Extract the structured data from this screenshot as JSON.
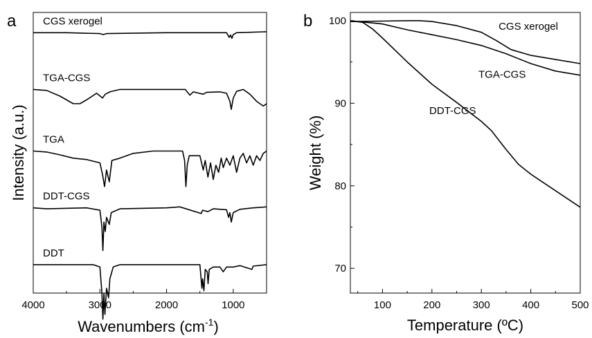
{
  "chart_data": [
    {
      "type": "line",
      "panel_label": "a",
      "xlabel": "Wavenumbers (cm",
      "xlabel_sup": "-1",
      "xlabel_end": ")",
      "ylabel": "Intensity (a.u.)",
      "xlim": [
        4000,
        500
      ],
      "x_reversed": true,
      "y_ticks_shown": false,
      "xticks": [
        4000,
        3000,
        2000,
        1000
      ],
      "xtick_labels": [
        "4000",
        "3000",
        "2000",
        "1000"
      ],
      "grid": false,
      "legend": "none",
      "series": [
        {
          "name": "CGS xerogel",
          "offset": 5.5,
          "points": [
            [
              4000,
              0
            ],
            [
              3500,
              0
            ],
            [
              3000,
              -0.02
            ],
            [
              2950,
              -0.04
            ],
            [
              2900,
              -0.02
            ],
            [
              2000,
              0
            ],
            [
              1700,
              0
            ],
            [
              1100,
              0
            ],
            [
              1060,
              -0.1
            ],
            [
              1040,
              -0.05
            ],
            [
              1020,
              -0.12
            ],
            [
              1000,
              -0.04
            ],
            [
              950,
              0
            ],
            [
              500,
              0.02
            ]
          ]
        },
        {
          "name": "TGA-CGS",
          "offset": 4.3,
          "points": [
            [
              4000,
              0
            ],
            [
              3800,
              -0.02
            ],
            [
              3600,
              -0.14
            ],
            [
              3400,
              -0.3
            ],
            [
              3300,
              -0.3
            ],
            [
              3200,
              -0.22
            ],
            [
              3050,
              -0.08
            ],
            [
              2960,
              -0.18
            ],
            [
              2920,
              -0.1
            ],
            [
              2850,
              -0.05
            ],
            [
              2700,
              0
            ],
            [
              2000,
              0
            ],
            [
              1720,
              0
            ],
            [
              1650,
              -0.12
            ],
            [
              1600,
              -0.05
            ],
            [
              1450,
              -0.1
            ],
            [
              1400,
              -0.06
            ],
            [
              1200,
              -0.05
            ],
            [
              1100,
              -0.08
            ],
            [
              1050,
              -0.25
            ],
            [
              1030,
              -0.42
            ],
            [
              1000,
              -0.18
            ],
            [
              950,
              -0.04
            ],
            [
              850,
              0
            ],
            [
              750,
              -0.1
            ],
            [
              650,
              -0.25
            ],
            [
              550,
              -0.35
            ],
            [
              500,
              -0.3
            ]
          ]
        },
        {
          "name": "TGA",
          "offset": 3.0,
          "points": [
            [
              4000,
              0
            ],
            [
              3800,
              -0.02
            ],
            [
              3600,
              -0.08
            ],
            [
              3400,
              -0.15
            ],
            [
              3200,
              -0.18
            ],
            [
              3000,
              -0.25
            ],
            [
              2960,
              -0.5
            ],
            [
              2930,
              -0.75
            ],
            [
              2900,
              -0.4
            ],
            [
              2860,
              -0.65
            ],
            [
              2820,
              -0.2
            ],
            [
              2700,
              -0.15
            ],
            [
              2500,
              -0.05
            ],
            [
              2200,
              0
            ],
            [
              1760,
              0
            ],
            [
              1730,
              -0.2
            ],
            [
              1710,
              -0.75
            ],
            [
              1690,
              -0.3
            ],
            [
              1660,
              -0.1
            ],
            [
              1500,
              -0.1
            ],
            [
              1450,
              -0.4
            ],
            [
              1420,
              -0.2
            ],
            [
              1380,
              -0.55
            ],
            [
              1340,
              -0.25
            ],
            [
              1300,
              -0.6
            ],
            [
              1260,
              -0.3
            ],
            [
              1220,
              -0.45
            ],
            [
              1180,
              -0.15
            ],
            [
              1150,
              -0.35
            ],
            [
              1100,
              -0.15
            ],
            [
              1050,
              -0.3
            ],
            [
              1000,
              -0.1
            ],
            [
              950,
              -0.45
            ],
            [
              900,
              -0.15
            ],
            [
              850,
              -0.05
            ],
            [
              800,
              -0.25
            ],
            [
              750,
              -0.1
            ],
            [
              700,
              -0.3
            ],
            [
              650,
              -0.1
            ],
            [
              600,
              -0.2
            ],
            [
              550,
              -0.05
            ],
            [
              500,
              0
            ]
          ]
        },
        {
          "name": "DDT-CGS",
          "offset": 1.8,
          "points": [
            [
              4000,
              0
            ],
            [
              3800,
              -0.02
            ],
            [
              3200,
              0
            ],
            [
              3000,
              -0.05
            ],
            [
              2970,
              -0.4
            ],
            [
              2955,
              -0.9
            ],
            [
              2940,
              -0.3
            ],
            [
              2920,
              -0.5
            ],
            [
              2900,
              -0.2
            ],
            [
              2860,
              -0.35
            ],
            [
              2830,
              -0.1
            ],
            [
              2700,
              -0.02
            ],
            [
              2000,
              0
            ],
            [
              1800,
              0.02
            ],
            [
              1480,
              -0.12
            ],
            [
              1460,
              -0.05
            ],
            [
              1380,
              -0.08
            ],
            [
              1300,
              -0.02
            ],
            [
              1100,
              -0.04
            ],
            [
              1070,
              -0.2
            ],
            [
              1050,
              -0.1
            ],
            [
              1030,
              -0.3
            ],
            [
              1000,
              -0.1
            ],
            [
              900,
              -0.03
            ],
            [
              700,
              0
            ],
            [
              500,
              0.02
            ]
          ]
        },
        {
          "name": "DDT",
          "offset": 0.6,
          "points": [
            [
              4000,
              0
            ],
            [
              3100,
              0
            ],
            [
              3000,
              -0.05
            ],
            [
              2970,
              -0.6
            ],
            [
              2955,
              -1.15
            ],
            [
              2940,
              -0.6
            ],
            [
              2925,
              -1.05
            ],
            [
              2900,
              -0.5
            ],
            [
              2870,
              -0.7
            ],
            [
              2850,
              -0.3
            ],
            [
              2800,
              -0.05
            ],
            [
              2700,
              0
            ],
            [
              1500,
              0
            ],
            [
              1470,
              -0.5
            ],
            [
              1460,
              -0.3
            ],
            [
              1440,
              -0.55
            ],
            [
              1420,
              -0.1
            ],
            [
              1390,
              -0.15
            ],
            [
              1378,
              -0.4
            ],
            [
              1360,
              -0.1
            ],
            [
              1300,
              -0.05
            ],
            [
              1200,
              -0.05
            ],
            [
              1150,
              -0.15
            ],
            [
              1100,
              -0.05
            ],
            [
              1000,
              -0.05
            ],
            [
              900,
              -0.02
            ],
            [
              720,
              -0.1
            ],
            [
              700,
              -0.03
            ],
            [
              500,
              0
            ]
          ]
        }
      ]
    },
    {
      "type": "line",
      "panel_label": "b",
      "xlabel": "Temperature (ºC)",
      "ylabel": "Weight (%)",
      "xlim": [
        35,
        500
      ],
      "ylim": [
        67,
        101
      ],
      "xticks": [
        100,
        200,
        300,
        400,
        500
      ],
      "xtick_labels": [
        "100",
        "200",
        "300",
        "400",
        "500"
      ],
      "yticks": [
        70,
        80,
        90,
        100
      ],
      "ytick_labels": [
        "70",
        "80",
        "90",
        "100"
      ],
      "grid": false,
      "legend": "none",
      "series": [
        {
          "name": "CGS xerogel",
          "points": [
            [
              35,
              99.9
            ],
            [
              50,
              99.9
            ],
            [
              100,
              99.95
            ],
            [
              150,
              100
            ],
            [
              175,
              100
            ],
            [
              200,
              99.9
            ],
            [
              250,
              99.4
            ],
            [
              300,
              98.6
            ],
            [
              330,
              97.6
            ],
            [
              360,
              96.5
            ],
            [
              400,
              95.8
            ],
            [
              450,
              95.3
            ],
            [
              500,
              94.8
            ]
          ]
        },
        {
          "name": "TGA-CGS",
          "points": [
            [
              35,
              99.9
            ],
            [
              50,
              99.9
            ],
            [
              100,
              99.6
            ],
            [
              150,
              98.9
            ],
            [
              200,
              98.3
            ],
            [
              250,
              97.7
            ],
            [
              300,
              97
            ],
            [
              350,
              96
            ],
            [
              400,
              94.8
            ],
            [
              450,
              93.9
            ],
            [
              500,
              93.4
            ]
          ]
        },
        {
          "name": "DDT-CGS",
          "points": [
            [
              35,
              100
            ],
            [
              60,
              99.8
            ],
            [
              80,
              99
            ],
            [
              100,
              97.9
            ],
            [
              150,
              95
            ],
            [
              200,
              92.3
            ],
            [
              250,
              90.1
            ],
            [
              300,
              87.8
            ],
            [
              320,
              86.7
            ],
            [
              350,
              84.4
            ],
            [
              375,
              82.6
            ],
            [
              400,
              81.4
            ],
            [
              450,
              79.4
            ],
            [
              500,
              77.4
            ]
          ]
        }
      ]
    }
  ]
}
